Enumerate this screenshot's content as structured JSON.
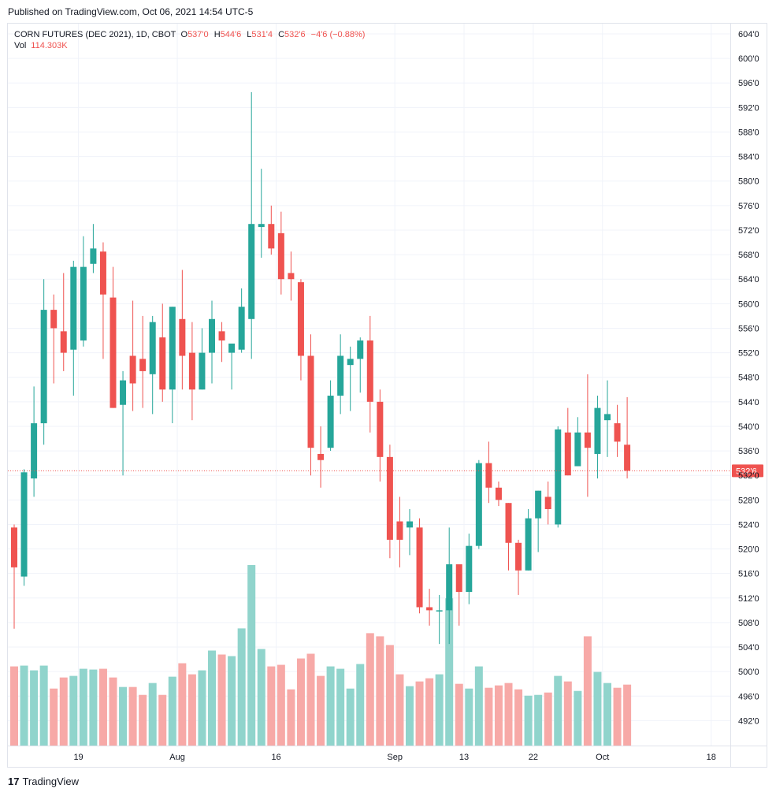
{
  "header": {
    "published": "Published on TradingView.com, Oct 06, 2021 14:54 UTC-5"
  },
  "legend": {
    "symbol": "CORN FUTURES (DEC 2021), 1D, CBOT",
    "o_label": "O",
    "o_value": "537'0",
    "h_label": "H",
    "h_value": "544'6",
    "l_label": "L",
    "l_value": "531'4",
    "c_label": "C",
    "c_value": "532'6",
    "change": "−4'6 (−0.88%)",
    "vol_label": "Vol",
    "vol_value": "114.303K"
  },
  "footer": {
    "logo": "17",
    "brand": "TradingView"
  },
  "colors": {
    "up": "#26a69a",
    "down": "#ef5350",
    "vol_up": "#90d4cc",
    "vol_down": "#f7a9a7",
    "grid": "#f0f3fa",
    "last_price_line": "#ef5350"
  },
  "chart_data": {
    "type": "candlestick",
    "y_unit": "cents (quarter-cent fraction notation)",
    "y_ticks": [
      "604'0",
      "600'0",
      "596'0",
      "592'0",
      "588'0",
      "584'0",
      "580'0",
      "576'0",
      "572'0",
      "568'0",
      "564'0",
      "560'0",
      "556'0",
      "552'0",
      "548'0",
      "544'0",
      "540'0",
      "536'0",
      "532'0",
      "528'0",
      "524'0",
      "520'0",
      "516'0",
      "512'0",
      "508'0",
      "504'0",
      "500'0",
      "496'0",
      "492'0"
    ],
    "y_tick_values": [
      604,
      600,
      596,
      592,
      588,
      584,
      580,
      576,
      572,
      568,
      564,
      560,
      556,
      552,
      548,
      544,
      540,
      536,
      532,
      528,
      524,
      520,
      516,
      512,
      508,
      504,
      500,
      496,
      492
    ],
    "x_ticks": [
      {
        "label": "19",
        "index": 6.5
      },
      {
        "label": "Aug",
        "index": 16.5
      },
      {
        "label": "16",
        "index": 26.5
      },
      {
        "label": "Sep",
        "index": 38.5
      },
      {
        "label": "13",
        "index": 45.5
      },
      {
        "label": "22",
        "index": 52.5
      },
      {
        "label": "Oct",
        "index": 59.5
      },
      {
        "label": "18",
        "index": 70.5
      }
    ],
    "last_price": 532.75,
    "last_price_label": "532'6",
    "candles": [
      {
        "o": 523.5,
        "h": 524.0,
        "l": 507.0,
        "c": 517.0,
        "v": 100
      },
      {
        "o": 515.5,
        "h": 533.0,
        "l": 514.0,
        "c": 532.5,
        "v": 101
      },
      {
        "o": 531.5,
        "h": 546.5,
        "l": 528.5,
        "c": 540.5,
        "v": 95
      },
      {
        "o": 540.5,
        "h": 564.0,
        "l": 537.0,
        "c": 559.0,
        "v": 101
      },
      {
        "o": 559.0,
        "h": 561.5,
        "l": 547.0,
        "c": 556.0,
        "v": 72
      },
      {
        "o": 555.5,
        "h": 565.0,
        "l": 549.0,
        "c": 552.0,
        "v": 86
      },
      {
        "o": 552.5,
        "h": 567.0,
        "l": 545.0,
        "c": 566.0,
        "v": 88
      },
      {
        "o": 554.0,
        "h": 571.0,
        "l": 553.0,
        "c": 566.0,
        "v": 97
      },
      {
        "o": 566.5,
        "h": 573.0,
        "l": 565.0,
        "c": 569.0,
        "v": 96
      },
      {
        "o": 568.5,
        "h": 570.0,
        "l": 551.0,
        "c": 561.5,
        "v": 97
      },
      {
        "o": 561.0,
        "h": 566.0,
        "l": 543.0,
        "c": 543.0,
        "v": 86
      },
      {
        "o": 543.5,
        "h": 549.0,
        "l": 532.0,
        "c": 547.5,
        "v": 74
      },
      {
        "o": 551.5,
        "h": 560.5,
        "l": 542.5,
        "c": 547.0,
        "v": 74
      },
      {
        "o": 551.0,
        "h": 558.0,
        "l": 543.0,
        "c": 549.0,
        "v": 64
      },
      {
        "o": 548.5,
        "h": 558.0,
        "l": 542.0,
        "c": 557.0,
        "v": 79
      },
      {
        "o": 554.5,
        "h": 560.0,
        "l": 544.0,
        "c": 546.0,
        "v": 64
      },
      {
        "o": 546.0,
        "h": 559.5,
        "l": 540.5,
        "c": 559.5,
        "v": 87
      },
      {
        "o": 557.5,
        "h": 565.5,
        "l": 546.0,
        "c": 551.5,
        "v": 104
      },
      {
        "o": 552.0,
        "h": 557.0,
        "l": 541.0,
        "c": 546.0,
        "v": 90
      },
      {
        "o": 546.0,
        "h": 556.0,
        "l": 546.0,
        "c": 552.0,
        "v": 95
      },
      {
        "o": 552.0,
        "h": 560.5,
        "l": 547.0,
        "c": 557.5,
        "v": 120
      },
      {
        "o": 555.5,
        "h": 557.0,
        "l": 550.5,
        "c": 554.0,
        "v": 115
      },
      {
        "o": 552.0,
        "h": 553.0,
        "l": 546.0,
        "c": 553.5,
        "v": 113
      },
      {
        "o": 552.5,
        "h": 562.5,
        "l": 552.0,
        "c": 559.5,
        "v": 148
      },
      {
        "o": 557.5,
        "h": 594.5,
        "l": 551.0,
        "c": 573.0,
        "v": 228
      },
      {
        "o": 572.5,
        "h": 582.0,
        "l": 567.5,
        "c": 573.0,
        "v": 122
      },
      {
        "o": 573.0,
        "h": 576.0,
        "l": 568.0,
        "c": 569.0,
        "v": 100
      },
      {
        "o": 571.5,
        "h": 575.0,
        "l": 561.5,
        "c": 564.0,
        "v": 102
      },
      {
        "o": 565.0,
        "h": 568.5,
        "l": 560.5,
        "c": 564.0,
        "v": 71
      },
      {
        "o": 563.5,
        "h": 564.0,
        "l": 547.5,
        "c": 551.5,
        "v": 110
      },
      {
        "o": 551.5,
        "h": 555.0,
        "l": 532.0,
        "c": 536.5,
        "v": 116
      },
      {
        "o": 535.5,
        "h": 540.0,
        "l": 530.0,
        "c": 534.5,
        "v": 88
      },
      {
        "o": 536.5,
        "h": 547.5,
        "l": 536.0,
        "c": 545.0,
        "v": 100
      },
      {
        "o": 545.0,
        "h": 555.0,
        "l": 542.0,
        "c": 551.5,
        "v": 97
      },
      {
        "o": 550.0,
        "h": 553.0,
        "l": 542.5,
        "c": 551.0,
        "v": 72
      },
      {
        "o": 551.0,
        "h": 554.5,
        "l": 545.5,
        "c": 554.0,
        "v": 103
      },
      {
        "o": 554.0,
        "h": 558.0,
        "l": 539.0,
        "c": 544.0,
        "v": 142
      },
      {
        "o": 544.0,
        "h": 546.0,
        "l": 531.0,
        "c": 535.0,
        "v": 138
      },
      {
        "o": 535.0,
        "h": 537.0,
        "l": 518.5,
        "c": 521.5,
        "v": 127
      },
      {
        "o": 524.5,
        "h": 528.5,
        "l": 517.0,
        "c": 521.5,
        "v": 90
      },
      {
        "o": 523.5,
        "h": 526.5,
        "l": 519.0,
        "c": 524.5,
        "v": 75
      },
      {
        "o": 523.5,
        "h": 525.0,
        "l": 509.5,
        "c": 510.5,
        "v": 81
      },
      {
        "o": 510.5,
        "h": 513.5,
        "l": 507.5,
        "c": 510.0,
        "v": 85
      },
      {
        "o": 510.0,
        "h": 512.5,
        "l": 504.5,
        "c": 510.0,
        "v": 90
      },
      {
        "o": 510.0,
        "h": 523.5,
        "l": 504.5,
        "c": 517.5,
        "v": 186
      },
      {
        "o": 517.5,
        "h": 517.5,
        "l": 507.5,
        "c": 513.0,
        "v": 78
      },
      {
        "o": 513.0,
        "h": 522.5,
        "l": 511.0,
        "c": 520.5,
        "v": 72
      },
      {
        "o": 520.5,
        "h": 534.5,
        "l": 520.0,
        "c": 534.0,
        "v": 100
      },
      {
        "o": 534.0,
        "h": 537.5,
        "l": 527.5,
        "c": 530.0,
        "v": 73
      },
      {
        "o": 530.0,
        "h": 531.0,
        "l": 527.0,
        "c": 528.0,
        "v": 76
      },
      {
        "o": 527.5,
        "h": 527.5,
        "l": 516.5,
        "c": 521.0,
        "v": 79
      },
      {
        "o": 521.0,
        "h": 521.5,
        "l": 512.5,
        "c": 516.5,
        "v": 71
      },
      {
        "o": 516.5,
        "h": 526.5,
        "l": 516.5,
        "c": 525.0,
        "v": 63
      },
      {
        "o": 525.0,
        "h": 529.5,
        "l": 519.5,
        "c": 529.5,
        "v": 64
      },
      {
        "o": 528.5,
        "h": 531.0,
        "l": 524.0,
        "c": 526.5,
        "v": 67
      },
      {
        "o": 524.0,
        "h": 540.0,
        "l": 523.5,
        "c": 539.5,
        "v": 88
      },
      {
        "o": 539.0,
        "h": 543.0,
        "l": 532.0,
        "c": 532.0,
        "v": 81
      },
      {
        "o": 533.5,
        "h": 541.5,
        "l": 533.5,
        "c": 539.0,
        "v": 69
      },
      {
        "o": 539.0,
        "h": 548.5,
        "l": 528.5,
        "c": 536.5,
        "v": 138
      },
      {
        "o": 535.5,
        "h": 545.0,
        "l": 531.5,
        "c": 543.0,
        "v": 93
      },
      {
        "o": 541.0,
        "h": 547.5,
        "l": 535.0,
        "c": 542.0,
        "v": 79
      },
      {
        "o": 540.5,
        "h": 543.5,
        "l": 535.0,
        "c": 537.5,
        "v": 73
      },
      {
        "o": 537.0,
        "h": 544.75,
        "l": 531.5,
        "c": 532.75,
        "v": 77
      }
    ]
  }
}
